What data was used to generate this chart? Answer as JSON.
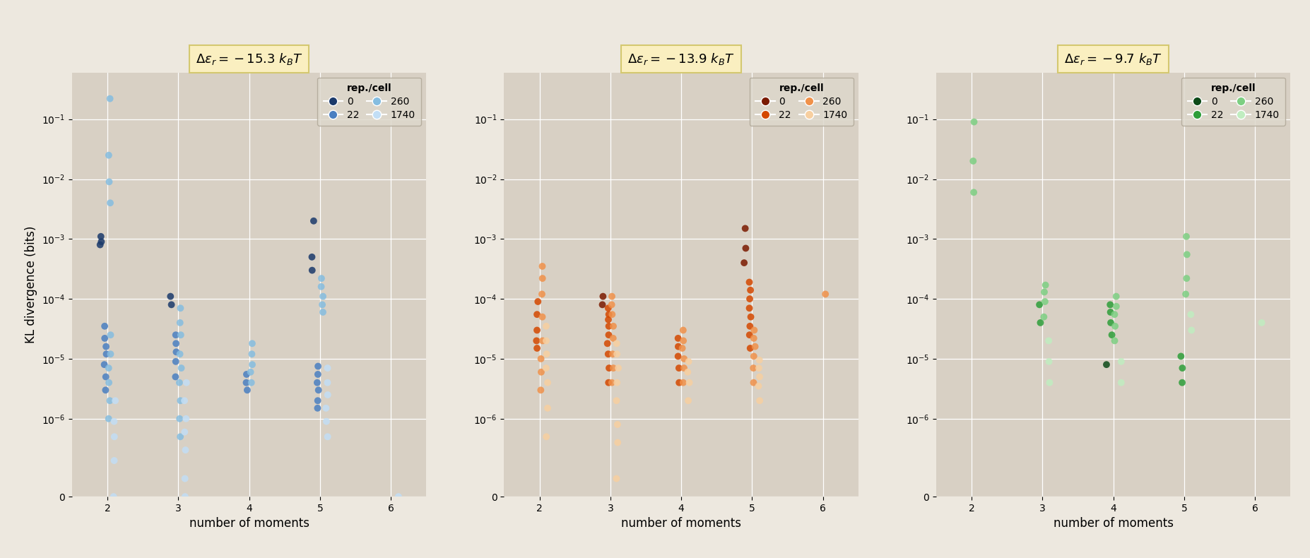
{
  "titles": [
    "$\\Delta\\varepsilon_r = -15.3\\ k_BT$",
    "$\\Delta\\varepsilon_r = -13.9\\ k_BT$",
    "$\\Delta\\varepsilon_r = -9.7\\ k_BT$"
  ],
  "panel_colors": [
    {
      "0": "#1b3a6b",
      "22": "#4a7fc1",
      "260": "#85bde0",
      "1740": "#c2def5"
    },
    {
      "0": "#7a1a00",
      "22": "#d44800",
      "260": "#f0914a",
      "1740": "#f7cfa0"
    },
    {
      "0": "#0d4a18",
      "22": "#2e9e3a",
      "260": "#7dcf82",
      "1740": "#c0edc0"
    }
  ],
  "scatter_data": [
    {
      "2": {
        "0": [
          0.0008,
          0.0009,
          0.0011
        ],
        "22": [
          3e-06,
          5e-06,
          8e-06,
          1.2e-05,
          1.6e-05,
          2.2e-05,
          3.5e-05
        ],
        "260": [
          1e-06,
          2e-06,
          4e-06,
          7e-06,
          1.2e-05,
          2.5e-05,
          0.004,
          0.009,
          0.025,
          0.22
        ],
        "1740": [
          1e-08,
          2e-07,
          5e-07,
          9e-07,
          2e-06
        ]
      },
      "3": {
        "0": [
          8e-05,
          0.00011
        ],
        "22": [
          5e-06,
          9e-06,
          1.3e-05,
          1.8e-05,
          2.5e-05
        ],
        "260": [
          5e-07,
          1e-06,
          2e-06,
          4e-06,
          7e-06,
          1.2e-05,
          2.5e-05,
          4e-05,
          7e-05
        ],
        "1740": [
          1e-08,
          1e-07,
          3e-07,
          6e-07,
          1e-06,
          2e-06,
          4e-06
        ]
      },
      "4": {
        "0": [],
        "22": [
          3e-06,
          4e-06,
          5.5e-06
        ],
        "260": [
          4e-06,
          6e-06,
          8e-06,
          1.2e-05,
          1.8e-05
        ],
        "1740": []
      },
      "5": {
        "0": [
          0.0003,
          0.0005,
          0.002
        ],
        "22": [
          1.5e-06,
          2e-06,
          3e-06,
          4e-06,
          5.5e-06,
          7.5e-06
        ],
        "260": [
          6e-05,
          8e-05,
          0.00011,
          0.00016,
          0.00022
        ],
        "1740": [
          5e-07,
          9e-07,
          1.5e-06,
          2.5e-06,
          4e-06,
          7e-06
        ]
      },
      "6": {
        "0": [],
        "22": [],
        "260": [],
        "1740": [
          1e-08
        ]
      }
    },
    {
      "2": {
        "0": [],
        "22": [
          1.5e-05,
          2e-05,
          3e-05,
          5.5e-05,
          9e-05
        ],
        "260": [
          3e-06,
          6e-06,
          1e-05,
          2e-05,
          5e-05,
          0.00012,
          0.00022,
          0.00035
        ],
        "1740": [
          5e-07,
          1.5e-06,
          4e-06,
          7e-06,
          1.2e-05,
          2e-05,
          3.5e-05
        ]
      },
      "3": {
        "0": [
          8e-05,
          0.00011
        ],
        "22": [
          4e-06,
          7e-06,
          1.2e-05,
          1.8e-05,
          2.5e-05,
          3.5e-05,
          4.5e-05,
          5.5e-05,
          7e-05
        ],
        "260": [
          4e-06,
          7e-06,
          1.2e-05,
          2.2e-05,
          3.5e-05,
          5.5e-05,
          8e-05,
          0.00011
        ],
        "1740": [
          1e-07,
          4e-07,
          8e-07,
          2e-06,
          4e-06,
          7e-06,
          1.2e-05,
          1.8e-05
        ]
      },
      "4": {
        "0": [],
        "22": [
          4e-06,
          7e-06,
          1.1e-05,
          1.6e-05,
          2.2e-05
        ],
        "260": [
          4e-06,
          7e-06,
          1e-05,
          1.5e-05,
          2e-05,
          3e-05
        ],
        "1740": [
          2e-06,
          4e-06,
          6e-06,
          9e-06
        ]
      },
      "5": {
        "0": [
          0.0004,
          0.0007,
          0.0015
        ],
        "22": [
          1.5e-05,
          2.5e-05,
          3.5e-05,
          5e-05,
          7e-05,
          0.0001,
          0.00014,
          0.00019
        ],
        "260": [
          4e-06,
          7e-06,
          1.1e-05,
          1.6e-05,
          2.2e-05,
          3e-05
        ],
        "1740": [
          2e-06,
          3.5e-06,
          5e-06,
          7e-06,
          9.5e-06
        ]
      },
      "6": {
        "0": [],
        "22": [],
        "260": [
          0.00012
        ],
        "1740": []
      }
    },
    {
      "2": {
        "0": [],
        "22": [],
        "260": [
          0.006,
          0.02,
          0.09
        ],
        "1740": []
      },
      "3": {
        "0": [],
        "22": [
          4e-05,
          8e-05
        ],
        "260": [
          5e-05,
          9e-05,
          0.00013,
          0.00017
        ],
        "1740": [
          4e-06,
          9e-06,
          2e-05
        ]
      },
      "4": {
        "0": [
          8e-06
        ],
        "22": [
          2.5e-05,
          4e-05,
          6e-05,
          8e-05
        ],
        "260": [
          2e-05,
          3.5e-05,
          5.5e-05,
          7.5e-05,
          0.00011
        ],
        "1740": [
          4e-06,
          9e-06
        ]
      },
      "5": {
        "0": [],
        "22": [
          4e-06,
          7e-06,
          1.1e-05
        ],
        "260": [
          0.00012,
          0.00022,
          0.00055,
          0.0011
        ],
        "1740": [
          3e-05,
          5.5e-05
        ]
      },
      "6": {
        "0": [],
        "22": [],
        "260": [],
        "1740": [
          4e-05
        ]
      }
    }
  ],
  "rep_labels": [
    "0",
    "22",
    "260",
    "1740"
  ],
  "jitter": {
    "0": -0.1,
    "22": -0.03,
    "260": 0.03,
    "1740": 0.1
  },
  "xlabel": "number of moments",
  "ylabel": "KL divergence (bits)",
  "xticks": [
    2,
    3,
    4,
    5,
    6
  ],
  "yticks": [
    1e-06,
    1e-05,
    0.0001,
    0.001,
    0.01,
    0.1
  ],
  "ylim": [
    5e-08,
    0.6
  ],
  "xlim": [
    1.5,
    6.5
  ],
  "bg_color": "#d8d0c4",
  "fig_color": "#ede8df",
  "title_box_color": "#faefc0",
  "title_box_edge": "#d4c870",
  "grid_color": "#ffffff",
  "marker_size": 50,
  "alpha": 0.85
}
